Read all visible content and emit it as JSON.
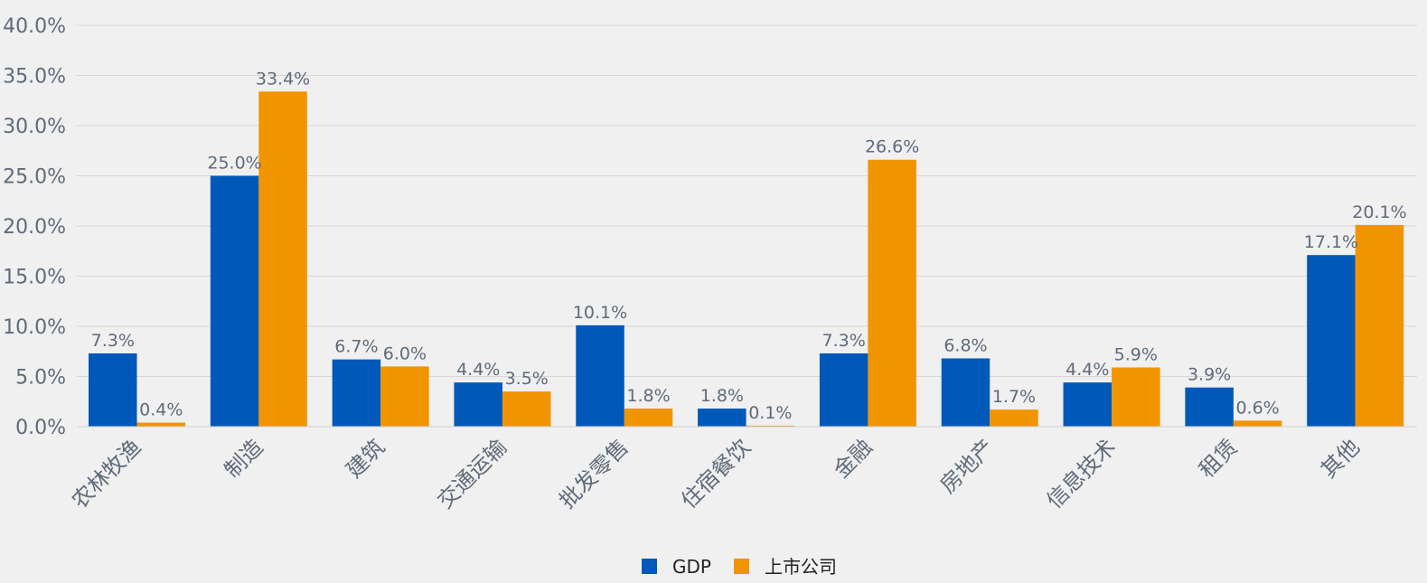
{
  "chart_data": {
    "type": "bar",
    "title": "",
    "xlabel": "",
    "ylabel": "",
    "ylim": [
      0,
      40
    ],
    "yticks": [
      "0.0%",
      "5.0%",
      "10.0%",
      "15.0%",
      "20.0%",
      "25.0%",
      "30.0%",
      "35.0%",
      "40.0%"
    ],
    "categories": [
      "农林牧渔",
      "制造",
      "建筑",
      "交通运输",
      "批发零售",
      "住宿餐饮",
      "金融",
      "房地产",
      "信息技术",
      "租赁",
      "其他"
    ],
    "series": [
      {
        "name": "GDP",
        "color": "#0058b8",
        "values": [
          7.3,
          25.0,
          6.7,
          4.4,
          10.1,
          1.8,
          7.3,
          6.8,
          4.4,
          3.9,
          17.1
        ],
        "labels": [
          "7.3%",
          "25.0%",
          "6.7%",
          "4.4%",
          "10.1%",
          "1.8%",
          "7.3%",
          "6.8%",
          "4.4%",
          "3.9%",
          "17.1%"
        ]
      },
      {
        "name": "上市公司",
        "color": "#f09400",
        "values": [
          0.4,
          33.4,
          6.0,
          3.5,
          1.8,
          0.1,
          26.6,
          1.7,
          5.9,
          0.6,
          20.1
        ],
        "labels": [
          "0.4%",
          "33.4%",
          "6.0%",
          "3.5%",
          "1.8%",
          "0.1%",
          "26.6%",
          "1.7%",
          "5.9%",
          "0.6%",
          "20.1%"
        ]
      }
    ],
    "grid": true,
    "legend": "bottom-center"
  }
}
